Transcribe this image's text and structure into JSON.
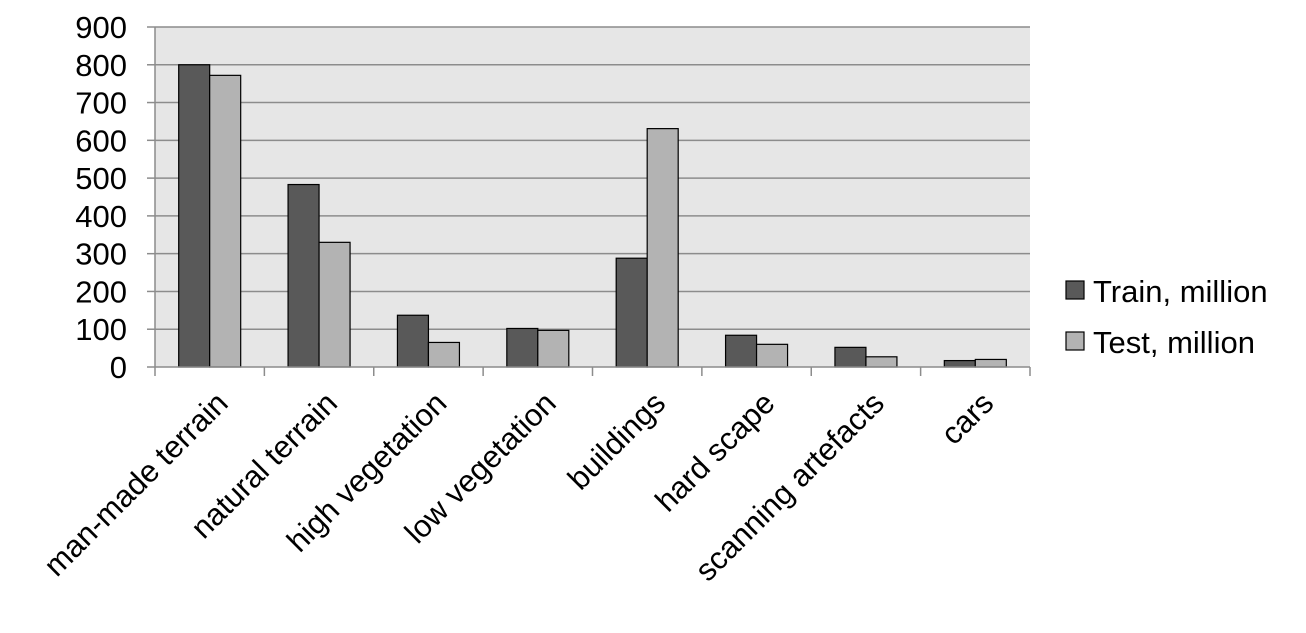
{
  "chart_data": {
    "type": "bar",
    "categories": [
      "man-made terrain",
      "natural terrain",
      "high vegetation",
      "low vegetation",
      "buildings",
      "hard scape",
      "scanning artefacts",
      "cars"
    ],
    "series": [
      {
        "name": "Train, million",
        "values": [
          800,
          483,
          137,
          102,
          288,
          84,
          52,
          17
        ],
        "color": "#595959"
      },
      {
        "name": "Test, million",
        "values": [
          772,
          330,
          65,
          97,
          631,
          60,
          27,
          20
        ],
        "color": "#b3b3b3"
      }
    ],
    "ylim": [
      0,
      900
    ],
    "yticks": [
      0,
      100,
      200,
      300,
      400,
      500,
      600,
      700,
      800,
      900
    ],
    "grid": true,
    "plot_background": "#e6e6e6",
    "legend_position": "right",
    "xlabel": "",
    "ylabel": "",
    "title": ""
  }
}
